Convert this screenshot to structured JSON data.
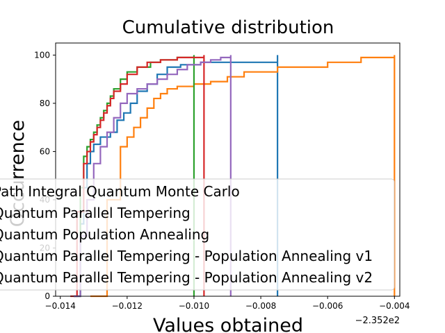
{
  "chart_data": {
    "type": "line",
    "title": "Cumulative distribution",
    "xlabel": "Values obtained",
    "ylabel": "Occurrence",
    "x_offset_label": "−2.352e2",
    "xlim": [
      -0.01414,
      -0.00384
    ],
    "ylim": [
      0,
      105
    ],
    "x_ticks": [
      -0.014,
      -0.012,
      -0.01,
      -0.008,
      -0.006,
      -0.004
    ],
    "x_tick_labels": [
      "−0.014",
      "−0.012",
      "−0.010",
      "−0.008",
      "−0.006",
      "−0.004"
    ],
    "y_ticks": [
      0,
      20,
      40,
      60,
      80,
      100
    ],
    "y_tick_labels": [
      "0",
      "20",
      "40",
      "60",
      "80",
      "100"
    ],
    "grid": false,
    "legend_position": "lower-center",
    "series": [
      {
        "name": "Path Integral Quantum Monte Carlo",
        "color": "#1f77b4",
        "x": [
          -0.0136,
          -0.0134,
          -0.0133,
          -0.0132,
          -0.0131,
          -0.013,
          -0.0128,
          -0.0125,
          -0.0123,
          -0.0121,
          -0.0119,
          -0.0117,
          -0.0114,
          -0.0111,
          -0.0108,
          -0.0104,
          -0.0098,
          -0.009,
          -0.0075
        ],
        "y": [
          0,
          30,
          45,
          55,
          60,
          63,
          66,
          68,
          73,
          76,
          80,
          85,
          88,
          92,
          95,
          96,
          97,
          97,
          100
        ]
      },
      {
        "name": "Quantum Parallel Tempering",
        "color": "#ff7f0e",
        "x": [
          -0.0131,
          -0.0126,
          -0.0122,
          -0.012,
          -0.0118,
          -0.0116,
          -0.0114,
          -0.0112,
          -0.011,
          -0.0108,
          -0.0105,
          -0.01,
          -0.0095,
          -0.009,
          -0.0085,
          -0.0075,
          -0.006,
          -0.005,
          -0.004
        ],
        "y": [
          0,
          40,
          62,
          66,
          70,
          74,
          78,
          82,
          84,
          86,
          87,
          88,
          89,
          91,
          93,
          95,
          97,
          99,
          100
        ]
      },
      {
        "name": "Quantum Population Annealing",
        "color": "#2ca02c",
        "x": [
          -0.0136,
          -0.0134,
          -0.0133,
          -0.0132,
          -0.0131,
          -0.013,
          -0.0129,
          -0.0128,
          -0.0127,
          -0.0126,
          -0.0125,
          -0.0124,
          -0.0122,
          -0.012,
          -0.0117,
          -0.0113,
          -0.011,
          -0.0105,
          -0.01
        ],
        "y": [
          0,
          45,
          58,
          62,
          65,
          68,
          71,
          74,
          77,
          80,
          83,
          86,
          90,
          93,
          95,
          97,
          98,
          99,
          100
        ]
      },
      {
        "name": "Quantum Parallel Tempering - Population Annealing v1",
        "color": "#d62728",
        "x": [
          -0.0137,
          -0.0135,
          -0.0133,
          -0.0132,
          -0.0131,
          -0.013,
          -0.0129,
          -0.0128,
          -0.0127,
          -0.0126,
          -0.0125,
          -0.0124,
          -0.0122,
          -0.012,
          -0.0117,
          -0.0114,
          -0.011,
          -0.0105,
          -0.0097
        ],
        "y": [
          0,
          35,
          55,
          60,
          64,
          67,
          70,
          73,
          76,
          79,
          82,
          85,
          88,
          92,
          95,
          97,
          98,
          99,
          100
        ]
      },
      {
        "name": "Quantum Parallel Tempering - Population Annealing v2",
        "color": "#9467bd",
        "x": [
          -0.0136,
          -0.0134,
          -0.0132,
          -0.013,
          -0.0128,
          -0.0126,
          -0.0124,
          -0.0122,
          -0.012,
          -0.0117,
          -0.0114,
          -0.0111,
          -0.0108,
          -0.0105,
          -0.0102,
          -0.0098,
          -0.0095,
          -0.0092,
          -0.0089
        ],
        "y": [
          0,
          25,
          40,
          55,
          62,
          68,
          74,
          80,
          84,
          86,
          88,
          90,
          92,
          94,
          96,
          97,
          98,
          99,
          100
        ]
      }
    ]
  }
}
